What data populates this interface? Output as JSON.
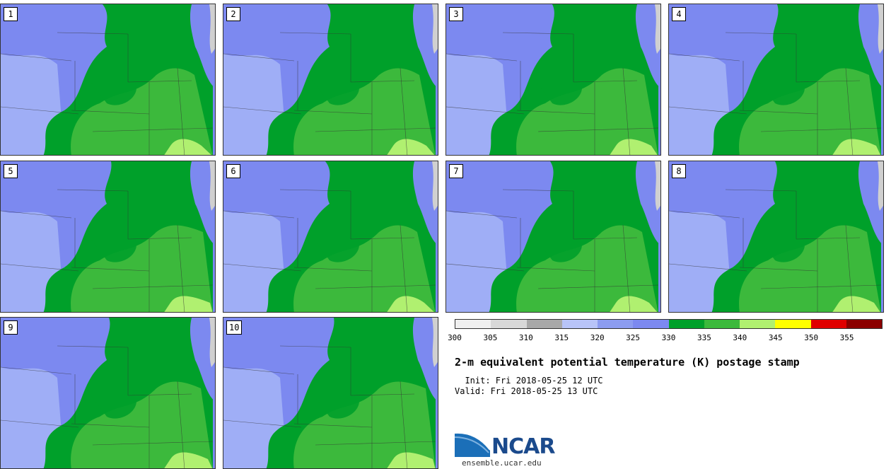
{
  "title": "2-m equivalent potential temperature (K) postage stamp",
  "init": "  Init: Fri 2018-05-25 12 UTC",
  "valid": "Valid: Fri 2018-05-25 13 UTC",
  "logo_text": "NCAR",
  "logo_url": "ensemble.ucar.edu",
  "panels": [
    {
      "label": "1"
    },
    {
      "label": "2"
    },
    {
      "label": "3"
    },
    {
      "label": "4"
    },
    {
      "label": "5"
    },
    {
      "label": "6"
    },
    {
      "label": "7"
    },
    {
      "label": "8"
    },
    {
      "label": "9"
    },
    {
      "label": "10"
    }
  ],
  "colorbar": {
    "ticks": [
      "300",
      "305",
      "310",
      "315",
      "320",
      "325",
      "330",
      "335",
      "340",
      "345",
      "350",
      "355"
    ],
    "colors": [
      "#f0f0f0",
      "#d8d8d8",
      "#a8a8a8",
      "#b8c4f8",
      "#8c9cf0",
      "#7c89f0",
      "#00a02a",
      "#3cb93c",
      "#b0f070",
      "#ffff00",
      "#e00000",
      "#8b0000"
    ]
  },
  "map_colors": {
    "cool_light": "#a8b8f8",
    "cool": "#7c89f0",
    "green_dark": "#00a02a",
    "green_mid": "#3cb93c",
    "green_light": "#b0f070",
    "land_edge": "#d0d0d0"
  }
}
